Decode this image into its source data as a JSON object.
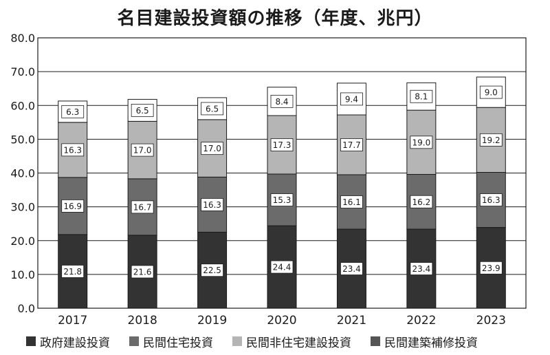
{
  "chart_data": {
    "type": "bar",
    "stacked": true,
    "title": "名目建設投資額の推移（年度、兆円）",
    "xlabel": "",
    "ylabel": "",
    "ylim": [
      0,
      80
    ],
    "yticks": [
      "0.0",
      "10.0",
      "20.0",
      "30.0",
      "40.0",
      "50.0",
      "60.0",
      "70.0",
      "80.0"
    ],
    "grid": true,
    "legend_position": "bottom",
    "categories": [
      "2017",
      "2018",
      "2019",
      "2020",
      "2021",
      "2022",
      "2023"
    ],
    "series": [
      {
        "name": "政府建設投資",
        "color": "#333333",
        "values": [
          21.8,
          21.6,
          22.5,
          24.4,
          23.4,
          23.4,
          23.9
        ],
        "labels": [
          "21.8",
          "21.6",
          "22.5",
          "24.4",
          "23.4",
          "23.4",
          "23.9"
        ]
      },
      {
        "name": "民間住宅投資",
        "color": "#6b6b6b",
        "values": [
          16.9,
          16.7,
          16.3,
          15.3,
          16.1,
          16.2,
          16.3
        ],
        "labels": [
          "16.9",
          "16.7",
          "16.3",
          "15.3",
          "16.1",
          "16.2",
          "16.3"
        ]
      },
      {
        "name": "民間非住宅建設投資",
        "color": "#b5b5b5",
        "values": [
          16.3,
          17.0,
          17.0,
          17.3,
          17.7,
          19.0,
          19.2
        ],
        "labels": [
          "16.3",
          "17.0",
          "17.0",
          "17.3",
          "17.7",
          "19.0",
          "19.2"
        ]
      },
      {
        "name": "民間建築補修投資",
        "color": "#ffffff",
        "legend_color": "#555555",
        "values": [
          6.3,
          6.5,
          6.5,
          8.4,
          9.4,
          8.1,
          9.0
        ],
        "labels": [
          "6.3",
          "6.5",
          "6.5",
          "8.4",
          "9.4",
          "8.1",
          "9.0"
        ]
      }
    ]
  }
}
